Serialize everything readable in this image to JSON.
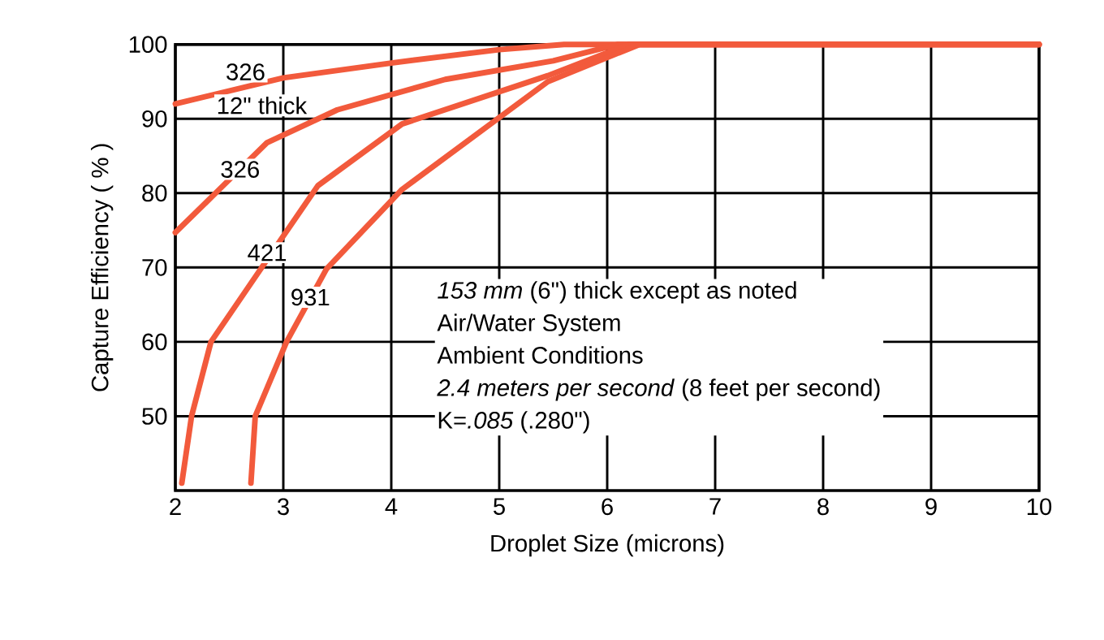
{
  "chart_data": {
    "type": "line",
    "xlabel": "Droplet Size (microns)",
    "ylabel": "Capture Efficiency ( % )",
    "xlim": [
      2,
      10
    ],
    "ylim": [
      40,
      100
    ],
    "xticks": [
      2,
      3,
      4,
      5,
      6,
      7,
      8,
      9,
      10
    ],
    "yticks": [
      50,
      60,
      70,
      80,
      90,
      100
    ],
    "grid": true,
    "marker": "none",
    "line_style": "solid",
    "series": [
      {
        "name": "326",
        "color": "#f25a3c",
        "x": [
          2,
          3,
          4,
          5,
          5.6,
          10
        ],
        "values": [
          92,
          95.5,
          97.5,
          99.3,
          100,
          100
        ]
      },
      {
        "name": "326",
        "color": "#f25a3c",
        "x": [
          2,
          2.4,
          2.85,
          3.5,
          4.5,
          5.5,
          6.1,
          10
        ],
        "values": [
          74.7,
          80.4,
          86.8,
          91.2,
          95.3,
          97.8,
          100,
          100
        ]
      },
      {
        "name": "421",
        "color": "#f25a3c",
        "x": [
          2.06,
          2.15,
          2.33,
          2.8,
          3.32,
          4.1,
          5.45,
          6.2,
          10
        ],
        "values": [
          41,
          50,
          60,
          70,
          81,
          89.3,
          95.8,
          100,
          100
        ]
      },
      {
        "name": "931",
        "color": "#f25a3c",
        "x": [
          2.7,
          2.74,
          3.03,
          3.4,
          4.1,
          5.45,
          6.3,
          10
        ],
        "values": [
          41,
          50,
          60,
          69.8,
          80.5,
          95,
          100,
          100
        ]
      }
    ],
    "annotations": [
      "12\" thick",
      "*153 mm* (6\") thick except as noted",
      "Air/Water System",
      "Ambient Conditions",
      "*2.4 meters per second* (8 feet per second)",
      "K=*.085* (.280\")"
    ]
  }
}
